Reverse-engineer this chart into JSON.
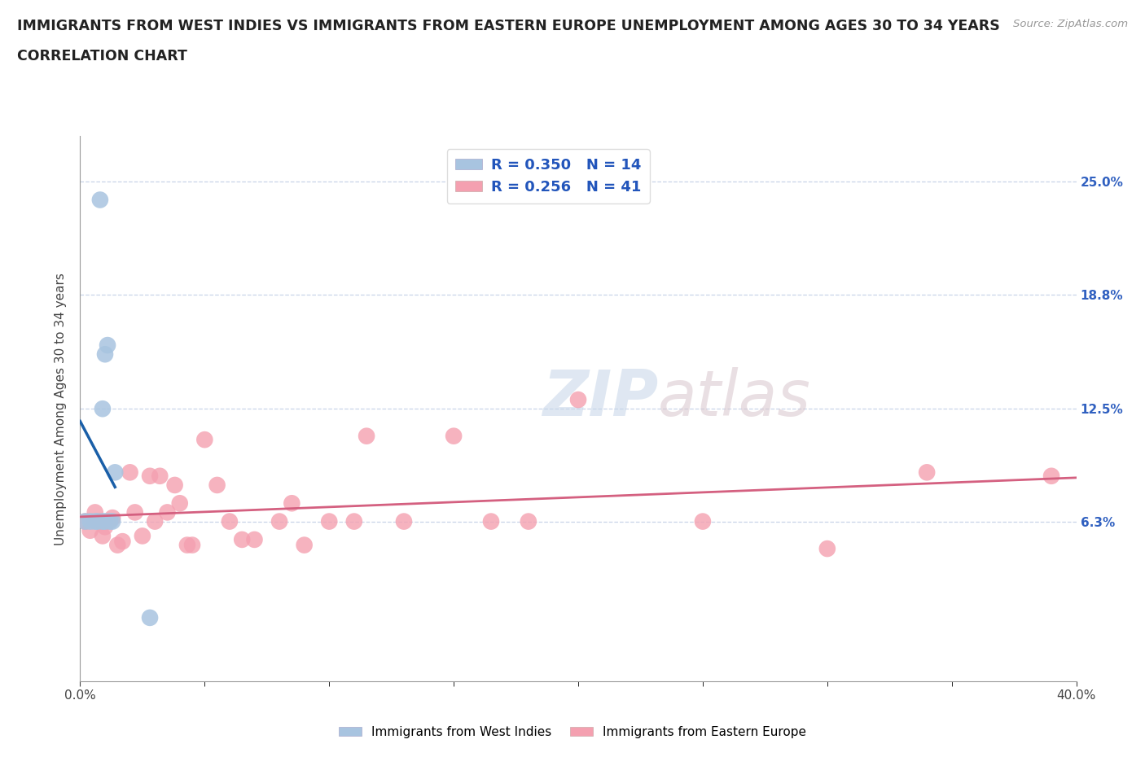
{
  "title_line1": "IMMIGRANTS FROM WEST INDIES VS IMMIGRANTS FROM EASTERN EUROPE UNEMPLOYMENT AMONG AGES 30 TO 34 YEARS",
  "title_line2": "CORRELATION CHART",
  "source_text": "Source: ZipAtlas.com",
  "ylabel": "Unemployment Among Ages 30 to 34 years",
  "watermark_zip": "ZIP",
  "watermark_atlas": "atlas",
  "xlim": [
    0.0,
    0.4
  ],
  "ylim": [
    -0.025,
    0.275
  ],
  "ytick_positions": [
    0.063,
    0.125,
    0.188,
    0.25
  ],
  "ytick_labels": [
    "6.3%",
    "12.5%",
    "18.8%",
    "25.0%"
  ],
  "west_indies_R": 0.35,
  "west_indies_N": 14,
  "eastern_europe_R": 0.256,
  "eastern_europe_N": 41,
  "west_indies_color": "#a8c4e0",
  "eastern_europe_color": "#f4a0b0",
  "west_indies_line_color": "#1a5fa8",
  "eastern_europe_line_color": "#d46080",
  "background_color": "#ffffff",
  "grid_color": "#c8d4e8",
  "west_indies_x": [
    0.002,
    0.004,
    0.006,
    0.007,
    0.008,
    0.009,
    0.009,
    0.01,
    0.01,
    0.011,
    0.012,
    0.013,
    0.014,
    0.028
  ],
  "west_indies_y": [
    0.063,
    0.063,
    0.063,
    0.063,
    0.24,
    0.125,
    0.063,
    0.155,
    0.063,
    0.16,
    0.063,
    0.063,
    0.09,
    0.01
  ],
  "eastern_europe_x": [
    0.002,
    0.004,
    0.006,
    0.008,
    0.009,
    0.01,
    0.011,
    0.013,
    0.015,
    0.017,
    0.02,
    0.022,
    0.025,
    0.028,
    0.03,
    0.032,
    0.035,
    0.038,
    0.04,
    0.043,
    0.045,
    0.05,
    0.055,
    0.06,
    0.065,
    0.07,
    0.08,
    0.085,
    0.09,
    0.1,
    0.11,
    0.115,
    0.13,
    0.15,
    0.165,
    0.18,
    0.2,
    0.25,
    0.3,
    0.34,
    0.39
  ],
  "eastern_europe_y": [
    0.063,
    0.058,
    0.068,
    0.063,
    0.055,
    0.06,
    0.063,
    0.065,
    0.05,
    0.052,
    0.09,
    0.068,
    0.055,
    0.088,
    0.063,
    0.088,
    0.068,
    0.083,
    0.073,
    0.05,
    0.05,
    0.108,
    0.083,
    0.063,
    0.053,
    0.053,
    0.063,
    0.073,
    0.05,
    0.063,
    0.063,
    0.11,
    0.063,
    0.11,
    0.063,
    0.063,
    0.13,
    0.063,
    0.048,
    0.09,
    0.088
  ]
}
